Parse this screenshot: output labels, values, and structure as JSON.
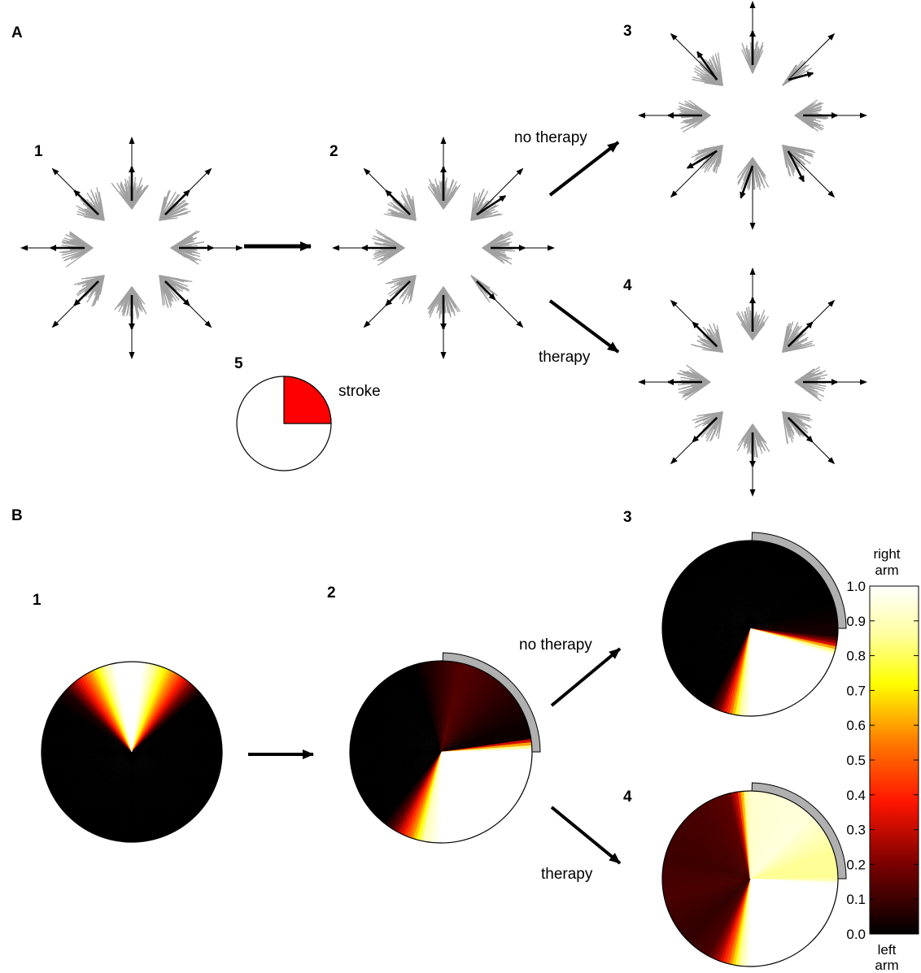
{
  "panels": {
    "a": {
      "label": "A",
      "stage_labels": [
        "1",
        "2",
        "3",
        "4",
        "5"
      ],
      "arrow_labels": {
        "no_therapy": "no therapy",
        "therapy": "therapy"
      },
      "inset_label": "stroke"
    },
    "b": {
      "label": "B",
      "stage_labels": [
        "1",
        "2",
        "3",
        "4"
      ],
      "arrow_labels": {
        "no_therapy": "no therapy",
        "therapy": "therapy"
      }
    }
  },
  "colorbar": {
    "top_label_line1": "right",
    "top_label_line2": "arm",
    "bottom_label_line1": "left",
    "bottom_label_line2": "arm",
    "ticks": [
      "1.0",
      "0.9",
      "0.8",
      "0.7",
      "0.6",
      "0.5",
      "0.4",
      "0.3",
      "0.2",
      "0.1",
      "0.0"
    ]
  },
  "colors": {
    "stroke_area": "#ff0000",
    "neuron_bundle": "#a0a0a0",
    "affected_arc": "#b0b0b0",
    "arrow": "#000000"
  },
  "chart_data": {
    "type": "heatmap",
    "colormap": "hot",
    "x_range": [
      0,
      1
    ],
    "colorbar_range": [
      0,
      1
    ],
    "pies": [
      {
        "stage": "1",
        "stops": [
          [
            0,
            1
          ],
          [
            0.02,
            1
          ],
          [
            0.035,
            0.9
          ],
          [
            0.06,
            0.72
          ],
          [
            0.085,
            0.5
          ],
          [
            0.105,
            0.3
          ],
          [
            0.125,
            0.1
          ],
          [
            0.14,
            0
          ],
          [
            0.84,
            0
          ],
          [
            0.87,
            0.05
          ],
          [
            0.895,
            0.3
          ],
          [
            0.92,
            0.55
          ],
          [
            0.95,
            0.85
          ],
          [
            0.97,
            1
          ],
          [
            1,
            1
          ]
        ]
      },
      {
        "stage": "2",
        "stops": [
          [
            0,
            0.08
          ],
          [
            0.04,
            0.14
          ],
          [
            0.1,
            0.1
          ],
          [
            0.16,
            0.05
          ],
          [
            0.2,
            0.02
          ],
          [
            0.225,
            0.02
          ],
          [
            0.235,
            0.55
          ],
          [
            0.245,
            1
          ],
          [
            0.5,
            1
          ],
          [
            0.53,
            0.9
          ],
          [
            0.55,
            0.6
          ],
          [
            0.57,
            0.35
          ],
          [
            0.59,
            0.12
          ],
          [
            0.61,
            0
          ],
          [
            0.8,
            0
          ],
          [
            0.95,
            0
          ],
          [
            1,
            0.08
          ]
        ]
      },
      {
        "stage": "3",
        "stops": [
          [
            0,
            0
          ],
          [
            0.2,
            0
          ],
          [
            0.265,
            0.04
          ],
          [
            0.28,
            0.3
          ],
          [
            0.29,
            0.8
          ],
          [
            0.3,
            1
          ],
          [
            0.5,
            1
          ],
          [
            0.52,
            0.85
          ],
          [
            0.54,
            0.45
          ],
          [
            0.56,
            0.15
          ],
          [
            0.58,
            0
          ],
          [
            1,
            0
          ]
        ]
      },
      {
        "stage": "4",
        "stops": [
          [
            0,
            0.93
          ],
          [
            0.12,
            0.95
          ],
          [
            0.2,
            0.85
          ],
          [
            0.25,
            0.85
          ],
          [
            0.26,
            1
          ],
          [
            0.5,
            1
          ],
          [
            0.52,
            0.85
          ],
          [
            0.54,
            0.5
          ],
          [
            0.56,
            0.25
          ],
          [
            0.58,
            0.12
          ],
          [
            0.63,
            0.08
          ],
          [
            0.72,
            0.12
          ],
          [
            0.8,
            0.1
          ],
          [
            0.9,
            0.12
          ],
          [
            0.96,
            0.15
          ],
          [
            0.975,
            0.3
          ],
          [
            0.985,
            0.6
          ],
          [
            0.992,
            0.85
          ],
          [
            1,
            0.93
          ]
        ]
      }
    ]
  }
}
